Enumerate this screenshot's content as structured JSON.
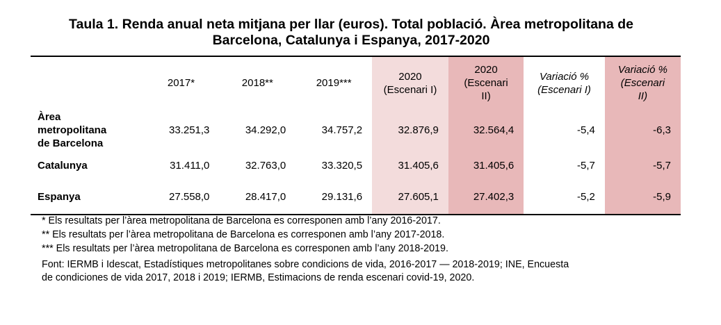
{
  "title_line1": "Taula 1. Renda anual neta mitjana per llar (euros). Total població. Àrea metropolitana de",
  "title_line2": "Barcelona, Catalunya i Espanya, 2017-2020",
  "headers": {
    "y2017": "2017*",
    "y2018": "2018**",
    "y2019": "2019***",
    "e1_line1": "2020",
    "e1_line2": "(Escenari I)",
    "e2_line1": "2020",
    "e2_line2": "(Escenari",
    "e2_line3": "II)",
    "v1_line1": "Variació %",
    "v1_line2": "(Escenari I)",
    "v2_line1": "Variació %",
    "v2_line2": "(Escenari",
    "v2_line3": "II)"
  },
  "rows": [
    {
      "label_line1": "Àrea",
      "label_line2": "metropolitana",
      "label_line3": "de Barcelona",
      "y2017": "33.251,3",
      "y2018": "34.292,0",
      "y2019": "34.757,2",
      "e1": "32.876,9",
      "e2": "32.564,4",
      "v1": "-5,4",
      "v2": "-6,3"
    },
    {
      "label": "Catalunya",
      "y2017": "31.411,0",
      "y2018": "32.763,0",
      "y2019": "33.320,5",
      "e1": "31.405,6",
      "e2": "31.405,6",
      "v1": "-5,7",
      "v2": "-5,7"
    },
    {
      "label": "Espanya",
      "y2017": "27.558,0",
      "y2018": "28.417,0",
      "y2019": "29.131,6",
      "e1": "27.605,1",
      "e2": "27.402,3",
      "v1": "-5,2",
      "v2": "-5,9"
    }
  ],
  "notes": [
    "* Els resultats per l’àrea metropolitana de Barcelona es corresponen amb l’any 2016-2017.",
    "** Els resultats per l’àrea metropolitana de Barcelona es corresponen amb l’any 2017-2018.",
    "*** Els resultats per l’àrea metropolitana de Barcelona es corresponen amb l’any 2018-2019."
  ],
  "source_line1": "Font: IERMB i Idescat, Estadístiques metropolitanes sobre condicions de vida, 2016-2017 — 2018-2019; INE, Encuesta",
  "source_line2": "de condiciones de vida 2017, 2018 i 2019; IERMB, Estimacions de renda escenari covid-19, 2020.",
  "colors": {
    "scenario1_bg": "#f3dcdc",
    "scenario2_bg": "#e8b8b9"
  }
}
